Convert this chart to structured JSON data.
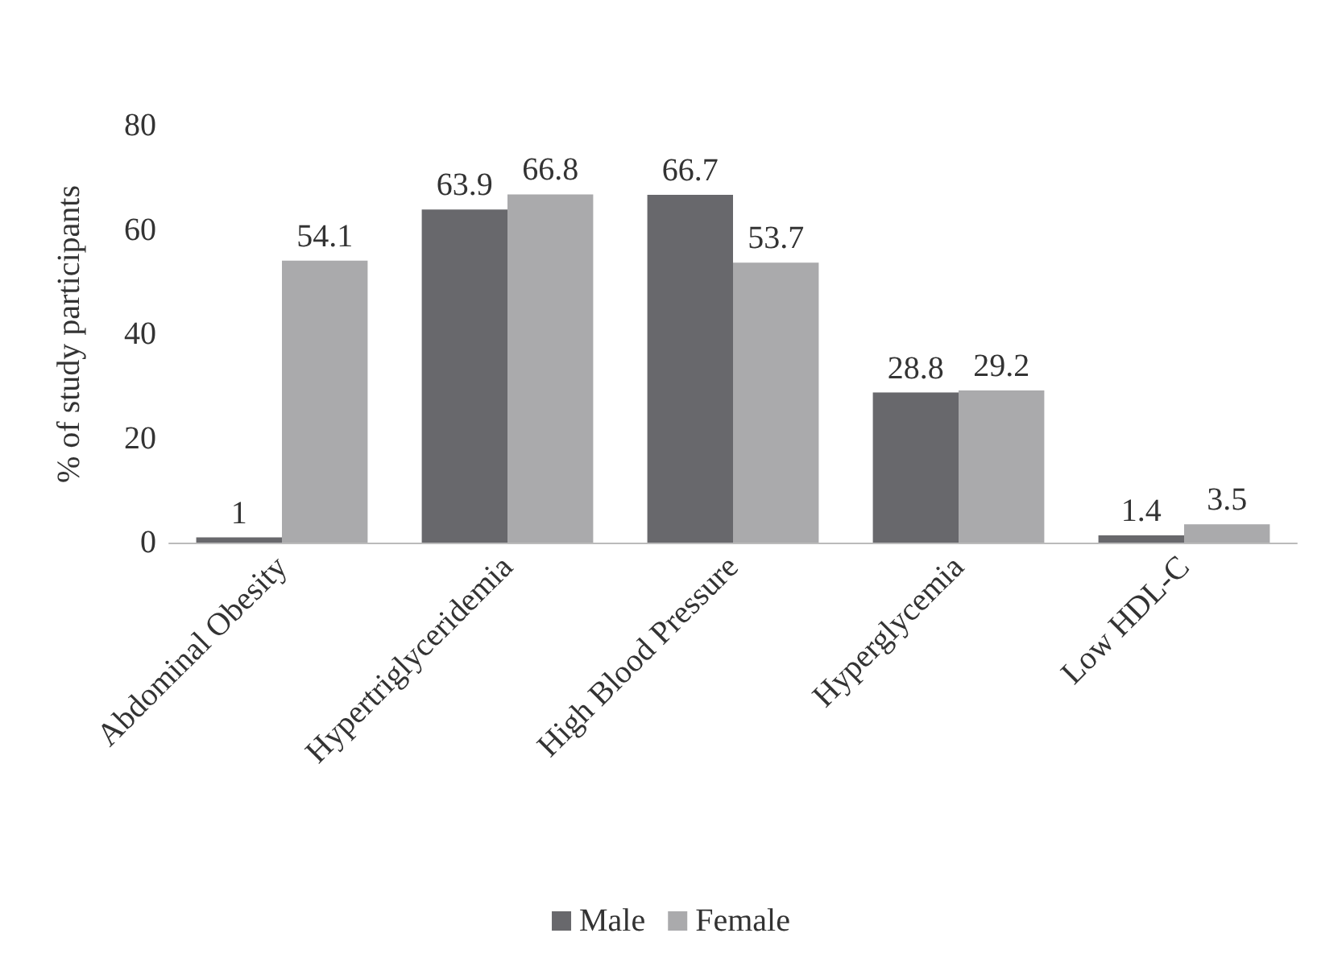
{
  "chart_data": {
    "type": "bar",
    "ylabel": "% of study participants",
    "categories": [
      "Abdominal Obesity",
      "Hypertriglyceridemia",
      "High Blood Pressure",
      "Hyperglycemia",
      "Low HDL-C"
    ],
    "series": [
      {
        "name": "Male",
        "color": "#68686c",
        "values": [
          1,
          63.9,
          66.7,
          28.8,
          1.4
        ]
      },
      {
        "name": "Female",
        "color": "#aaaaac",
        "values": [
          54.1,
          66.8,
          53.7,
          29.2,
          3.5
        ]
      }
    ],
    "ylim": [
      0,
      80
    ],
    "yticks": [
      0,
      20,
      40,
      60,
      80
    ],
    "grid": false,
    "legend": "bottom",
    "data_labels": true
  }
}
